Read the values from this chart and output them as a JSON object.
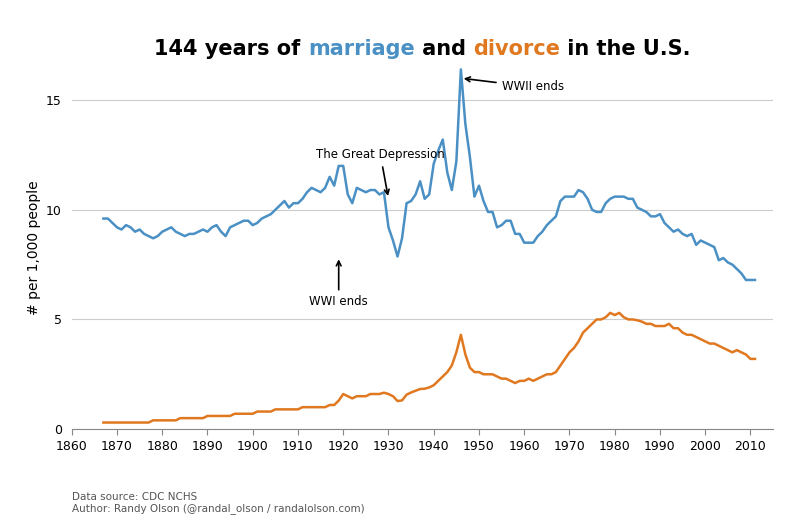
{
  "title_parts": [
    {
      "text": "144 years of ",
      "color": "#000000"
    },
    {
      "text": "marriage",
      "color": "#4a90c4"
    },
    {
      "text": " and ",
      "color": "#000000"
    },
    {
      "text": "divorce",
      "color": "#e07820"
    },
    {
      "text": " in the U.S.",
      "color": "#000000"
    }
  ],
  "title_fontsize": 15,
  "ylabel": "# per 1,000 people",
  "ylabel_fontsize": 10,
  "datasource": "Data source: CDC NCHS\nAuthor: Randy Olson (@randal_olson / randalolson.com)",
  "marriage_color": "#4a90c4",
  "divorce_color": "#e07820",
  "xlim": [
    1860,
    2015
  ],
  "ylim": [
    0,
    16.5
  ],
  "xticks": [
    1860,
    1870,
    1880,
    1890,
    1900,
    1910,
    1920,
    1930,
    1940,
    1950,
    1960,
    1970,
    1980,
    1990,
    2000,
    2010
  ],
  "yticks": [
    0.0,
    5.0,
    10.0,
    15.0
  ],
  "marriage_data": [
    [
      1867,
      9.6
    ],
    [
      1868,
      9.6
    ],
    [
      1869,
      9.4
    ],
    [
      1870,
      9.2
    ],
    [
      1871,
      9.1
    ],
    [
      1872,
      9.3
    ],
    [
      1873,
      9.2
    ],
    [
      1874,
      9.0
    ],
    [
      1875,
      9.1
    ],
    [
      1876,
      8.9
    ],
    [
      1877,
      8.8
    ],
    [
      1878,
      8.7
    ],
    [
      1879,
      8.8
    ],
    [
      1880,
      9.0
    ],
    [
      1881,
      9.1
    ],
    [
      1882,
      9.2
    ],
    [
      1883,
      9.0
    ],
    [
      1884,
      8.9
    ],
    [
      1885,
      8.8
    ],
    [
      1886,
      8.9
    ],
    [
      1887,
      8.9
    ],
    [
      1888,
      9.0
    ],
    [
      1889,
      9.1
    ],
    [
      1890,
      9.0
    ],
    [
      1891,
      9.2
    ],
    [
      1892,
      9.3
    ],
    [
      1893,
      9.0
    ],
    [
      1894,
      8.8
    ],
    [
      1895,
      9.2
    ],
    [
      1896,
      9.3
    ],
    [
      1897,
      9.4
    ],
    [
      1898,
      9.5
    ],
    [
      1899,
      9.5
    ],
    [
      1900,
      9.3
    ],
    [
      1901,
      9.4
    ],
    [
      1902,
      9.6
    ],
    [
      1903,
      9.7
    ],
    [
      1904,
      9.8
    ],
    [
      1905,
      10.0
    ],
    [
      1906,
      10.2
    ],
    [
      1907,
      10.4
    ],
    [
      1908,
      10.1
    ],
    [
      1909,
      10.3
    ],
    [
      1910,
      10.3
    ],
    [
      1911,
      10.5
    ],
    [
      1912,
      10.8
    ],
    [
      1913,
      11.0
    ],
    [
      1914,
      10.9
    ],
    [
      1915,
      10.8
    ],
    [
      1916,
      11.0
    ],
    [
      1917,
      11.5
    ],
    [
      1918,
      11.1
    ],
    [
      1919,
      12.0
    ],
    [
      1920,
      12.0
    ],
    [
      1921,
      10.7
    ],
    [
      1922,
      10.3
    ],
    [
      1923,
      11.0
    ],
    [
      1924,
      10.9
    ],
    [
      1925,
      10.8
    ],
    [
      1926,
      10.9
    ],
    [
      1927,
      10.9
    ],
    [
      1928,
      10.7
    ],
    [
      1929,
      10.8
    ],
    [
      1930,
      9.2
    ],
    [
      1931,
      8.6
    ],
    [
      1932,
      7.87
    ],
    [
      1933,
      8.7
    ],
    [
      1934,
      10.3
    ],
    [
      1935,
      10.4
    ],
    [
      1936,
      10.7
    ],
    [
      1937,
      11.3
    ],
    [
      1938,
      10.5
    ],
    [
      1939,
      10.7
    ],
    [
      1940,
      12.1
    ],
    [
      1941,
      12.7
    ],
    [
      1942,
      13.2
    ],
    [
      1943,
      11.7
    ],
    [
      1944,
      10.9
    ],
    [
      1945,
      12.2
    ],
    [
      1946,
      16.4
    ],
    [
      1947,
      13.9
    ],
    [
      1948,
      12.4
    ],
    [
      1949,
      10.6
    ],
    [
      1950,
      11.1
    ],
    [
      1951,
      10.4
    ],
    [
      1952,
      9.9
    ],
    [
      1953,
      9.9
    ],
    [
      1954,
      9.2
    ],
    [
      1955,
      9.3
    ],
    [
      1956,
      9.5
    ],
    [
      1957,
      9.5
    ],
    [
      1958,
      8.9
    ],
    [
      1959,
      8.9
    ],
    [
      1960,
      8.5
    ],
    [
      1961,
      8.5
    ],
    [
      1962,
      8.5
    ],
    [
      1963,
      8.8
    ],
    [
      1964,
      9.0
    ],
    [
      1965,
      9.3
    ],
    [
      1966,
      9.5
    ],
    [
      1967,
      9.7
    ],
    [
      1968,
      10.4
    ],
    [
      1969,
      10.6
    ],
    [
      1970,
      10.6
    ],
    [
      1971,
      10.6
    ],
    [
      1972,
      10.9
    ],
    [
      1973,
      10.8
    ],
    [
      1974,
      10.5
    ],
    [
      1975,
      10.0
    ],
    [
      1976,
      9.9
    ],
    [
      1977,
      9.9
    ],
    [
      1978,
      10.3
    ],
    [
      1979,
      10.5
    ],
    [
      1980,
      10.6
    ],
    [
      1981,
      10.6
    ],
    [
      1982,
      10.6
    ],
    [
      1983,
      10.5
    ],
    [
      1984,
      10.5
    ],
    [
      1985,
      10.1
    ],
    [
      1986,
      10.0
    ],
    [
      1987,
      9.9
    ],
    [
      1988,
      9.7
    ],
    [
      1989,
      9.7
    ],
    [
      1990,
      9.8
    ],
    [
      1991,
      9.4
    ],
    [
      1992,
      9.2
    ],
    [
      1993,
      9.0
    ],
    [
      1994,
      9.1
    ],
    [
      1995,
      8.9
    ],
    [
      1996,
      8.8
    ],
    [
      1997,
      8.9
    ],
    [
      1998,
      8.4
    ],
    [
      1999,
      8.6
    ],
    [
      2000,
      8.5
    ],
    [
      2001,
      8.4
    ],
    [
      2002,
      8.3
    ],
    [
      2003,
      7.7
    ],
    [
      2004,
      7.8
    ],
    [
      2005,
      7.6
    ],
    [
      2006,
      7.5
    ],
    [
      2007,
      7.3
    ],
    [
      2008,
      7.1
    ],
    [
      2009,
      6.8
    ],
    [
      2010,
      6.8
    ],
    [
      2011,
      6.8
    ]
  ],
  "divorce_data": [
    [
      1867,
      0.3
    ],
    [
      1868,
      0.3
    ],
    [
      1869,
      0.3
    ],
    [
      1870,
      0.3
    ],
    [
      1871,
      0.3
    ],
    [
      1872,
      0.3
    ],
    [
      1873,
      0.3
    ],
    [
      1874,
      0.3
    ],
    [
      1875,
      0.3
    ],
    [
      1876,
      0.3
    ],
    [
      1877,
      0.3
    ],
    [
      1878,
      0.4
    ],
    [
      1879,
      0.4
    ],
    [
      1880,
      0.4
    ],
    [
      1881,
      0.4
    ],
    [
      1882,
      0.4
    ],
    [
      1883,
      0.4
    ],
    [
      1884,
      0.5
    ],
    [
      1885,
      0.5
    ],
    [
      1886,
      0.5
    ],
    [
      1887,
      0.5
    ],
    [
      1888,
      0.5
    ],
    [
      1889,
      0.5
    ],
    [
      1890,
      0.6
    ],
    [
      1891,
      0.6
    ],
    [
      1892,
      0.6
    ],
    [
      1893,
      0.6
    ],
    [
      1894,
      0.6
    ],
    [
      1895,
      0.6
    ],
    [
      1896,
      0.7
    ],
    [
      1897,
      0.7
    ],
    [
      1898,
      0.7
    ],
    [
      1899,
      0.7
    ],
    [
      1900,
      0.7
    ],
    [
      1901,
      0.8
    ],
    [
      1902,
      0.8
    ],
    [
      1903,
      0.8
    ],
    [
      1904,
      0.8
    ],
    [
      1905,
      0.9
    ],
    [
      1906,
      0.9
    ],
    [
      1907,
      0.9
    ],
    [
      1908,
      0.9
    ],
    [
      1909,
      0.9
    ],
    [
      1910,
      0.9
    ],
    [
      1911,
      1.0
    ],
    [
      1912,
      1.0
    ],
    [
      1913,
      1.0
    ],
    [
      1914,
      1.0
    ],
    [
      1915,
      1.0
    ],
    [
      1916,
      1.0
    ],
    [
      1917,
      1.1
    ],
    [
      1918,
      1.1
    ],
    [
      1919,
      1.3
    ],
    [
      1920,
      1.6
    ],
    [
      1921,
      1.5
    ],
    [
      1922,
      1.4
    ],
    [
      1923,
      1.5
    ],
    [
      1924,
      1.5
    ],
    [
      1925,
      1.5
    ],
    [
      1926,
      1.6
    ],
    [
      1927,
      1.6
    ],
    [
      1928,
      1.6
    ],
    [
      1929,
      1.66
    ],
    [
      1930,
      1.6
    ],
    [
      1931,
      1.5
    ],
    [
      1932,
      1.28
    ],
    [
      1933,
      1.31
    ],
    [
      1934,
      1.57
    ],
    [
      1935,
      1.67
    ],
    [
      1936,
      1.75
    ],
    [
      1937,
      1.83
    ],
    [
      1938,
      1.84
    ],
    [
      1939,
      1.9
    ],
    [
      1940,
      2.0
    ],
    [
      1941,
      2.2
    ],
    [
      1942,
      2.4
    ],
    [
      1943,
      2.6
    ],
    [
      1944,
      2.9
    ],
    [
      1945,
      3.5
    ],
    [
      1946,
      4.3
    ],
    [
      1947,
      3.4
    ],
    [
      1948,
      2.8
    ],
    [
      1949,
      2.6
    ],
    [
      1950,
      2.6
    ],
    [
      1951,
      2.5
    ],
    [
      1952,
      2.5
    ],
    [
      1953,
      2.5
    ],
    [
      1954,
      2.4
    ],
    [
      1955,
      2.3
    ],
    [
      1956,
      2.3
    ],
    [
      1957,
      2.2
    ],
    [
      1958,
      2.1
    ],
    [
      1959,
      2.2
    ],
    [
      1960,
      2.2
    ],
    [
      1961,
      2.3
    ],
    [
      1962,
      2.2
    ],
    [
      1963,
      2.3
    ],
    [
      1964,
      2.4
    ],
    [
      1965,
      2.5
    ],
    [
      1966,
      2.5
    ],
    [
      1967,
      2.6
    ],
    [
      1968,
      2.9
    ],
    [
      1969,
      3.2
    ],
    [
      1970,
      3.5
    ],
    [
      1971,
      3.7
    ],
    [
      1972,
      4.0
    ],
    [
      1973,
      4.4
    ],
    [
      1974,
      4.6
    ],
    [
      1975,
      4.8
    ],
    [
      1976,
      5.0
    ],
    [
      1977,
      5.0
    ],
    [
      1978,
      5.1
    ],
    [
      1979,
      5.3
    ],
    [
      1980,
      5.2
    ],
    [
      1981,
      5.3
    ],
    [
      1982,
      5.1
    ],
    [
      1983,
      5.0
    ],
    [
      1984,
      5.0
    ],
    [
      1985,
      4.96
    ],
    [
      1986,
      4.9
    ],
    [
      1987,
      4.8
    ],
    [
      1988,
      4.8
    ],
    [
      1989,
      4.7
    ],
    [
      1990,
      4.7
    ],
    [
      1991,
      4.7
    ],
    [
      1992,
      4.8
    ],
    [
      1993,
      4.6
    ],
    [
      1994,
      4.6
    ],
    [
      1995,
      4.4
    ],
    [
      1996,
      4.3
    ],
    [
      1997,
      4.3
    ],
    [
      1998,
      4.2
    ],
    [
      1999,
      4.1
    ],
    [
      2000,
      4.0
    ],
    [
      2001,
      3.9
    ],
    [
      2002,
      3.9
    ],
    [
      2003,
      3.8
    ],
    [
      2004,
      3.7
    ],
    [
      2005,
      3.6
    ],
    [
      2006,
      3.5
    ],
    [
      2007,
      3.6
    ],
    [
      2008,
      3.5
    ],
    [
      2009,
      3.4
    ],
    [
      2010,
      3.2
    ],
    [
      2011,
      3.2
    ]
  ],
  "background_color": "#ffffff",
  "grid_color": "#cccccc",
  "line_width": 1.8
}
